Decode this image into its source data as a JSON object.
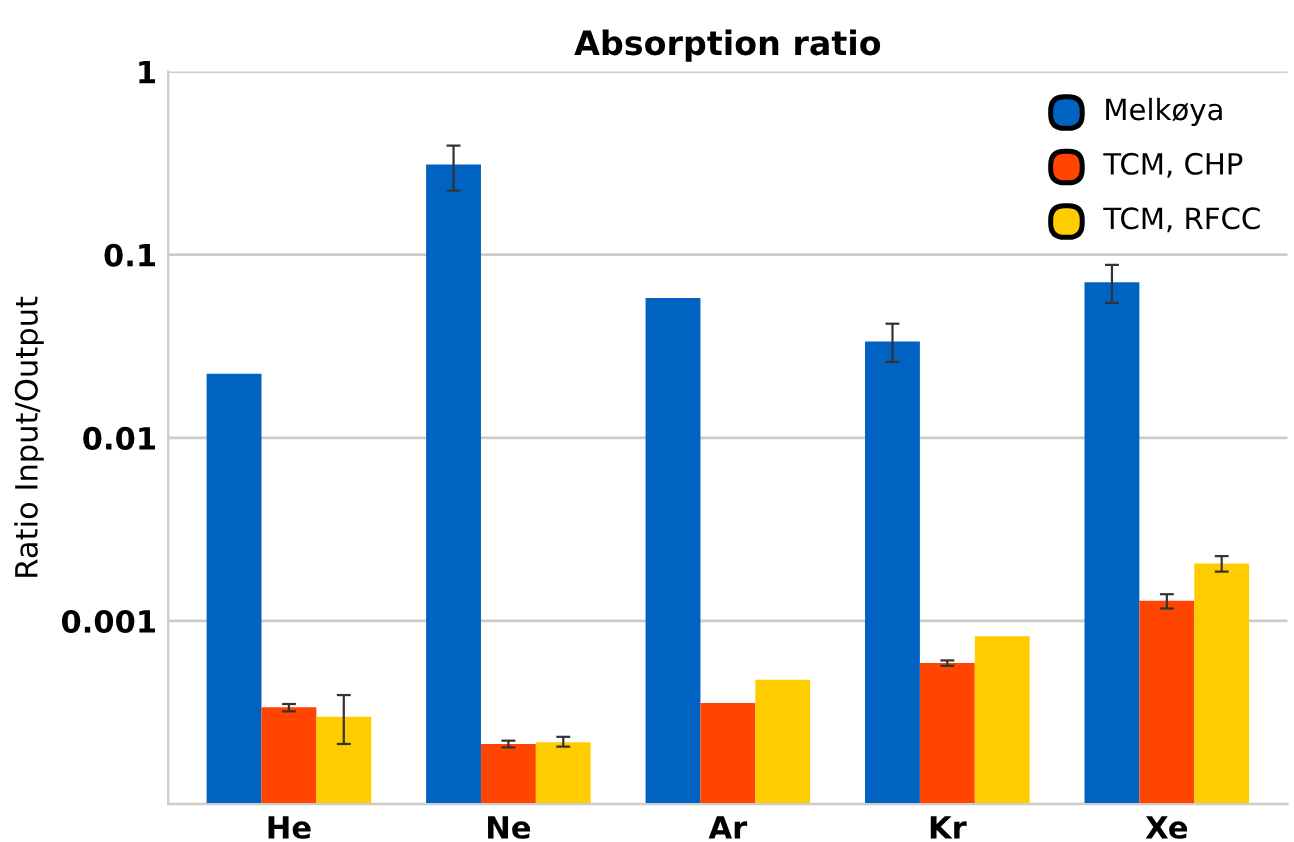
{
  "chart_data": {
    "type": "bar",
    "title": "Absorption ratio",
    "ylabel": "Ratio Input/Output",
    "categories": [
      "He",
      "Ne",
      "Ar",
      "Kr",
      "Xe"
    ],
    "series": [
      {
        "name": "Melkøya",
        "color": "#0063c1",
        "values": [
          0.0224,
          0.311,
          0.058,
          0.0336,
          0.0708
        ],
        "errors": [
          null,
          [
            0.224,
            0.394
          ],
          null,
          [
            0.026,
            0.042
          ],
          [
            0.0546,
            0.088
          ]
        ]
      },
      {
        "name": "TCM, CHP",
        "color": "#ff4500",
        "values": [
          0.000338,
          0.000213,
          0.000356,
          0.000589,
          0.00129
        ],
        "errors": [
          [
            0.000321,
            0.000352
          ],
          [
            0.000204,
            0.000222
          ],
          null,
          [
            0.000569,
            0.000609
          ],
          [
            0.00117,
            0.0014
          ]
        ]
      },
      {
        "name": "TCM, RFCC",
        "color": "#ffcc00",
        "values": [
          0.0003,
          0.000218,
          0.000477,
          0.000824,
          0.00206
        ],
        "errors": [
          [
            0.000213,
            0.000394
          ],
          [
            0.000206,
            0.000233
          ],
          null,
          null,
          [
            0.00186,
            0.00226
          ]
        ]
      }
    ],
    "log": true,
    "ylim": [
      0.0001,
      1
    ],
    "yticks": [
      {
        "value": 0.0001,
        "label": null
      },
      0.001,
      0.01,
      0.1,
      1
    ],
    "grid": "y",
    "legend": "top right"
  }
}
